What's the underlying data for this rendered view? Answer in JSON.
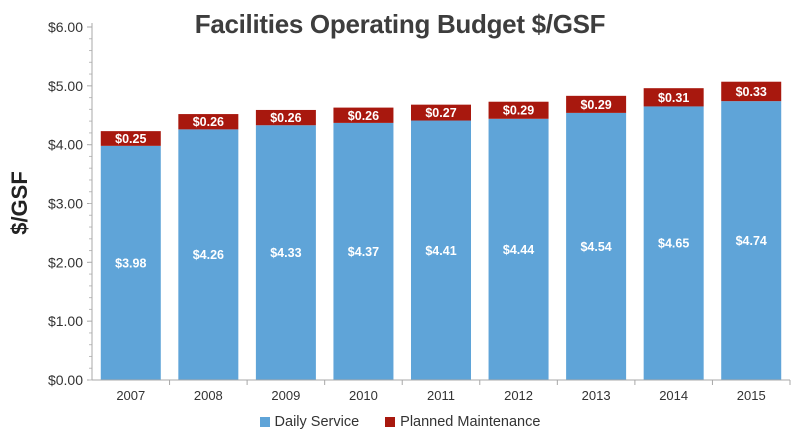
{
  "chart_data": {
    "type": "bar",
    "stacked": true,
    "title": "Facilities Operating Budget $/GSF",
    "ylabel": "$/GSF",
    "xlabel": "",
    "categories": [
      "2007",
      "2008",
      "2009",
      "2010",
      "2011",
      "2012",
      "2013",
      "2014",
      "2015"
    ],
    "series": [
      {
        "name": "Daily Service",
        "color": "#5fa4d8",
        "values": [
          3.98,
          4.26,
          4.33,
          4.37,
          4.41,
          4.44,
          4.54,
          4.65,
          4.74
        ],
        "labels": [
          "$3.98",
          "$4.26",
          "$4.33",
          "$4.37",
          "$4.41",
          "$4.44",
          "$4.54",
          "$4.65",
          "$4.74"
        ]
      },
      {
        "name": "Planned Maintenance",
        "color": "#a8180e",
        "values": [
          0.25,
          0.26,
          0.26,
          0.26,
          0.27,
          0.29,
          0.29,
          0.31,
          0.33
        ],
        "labels": [
          "$0.25",
          "$0.26",
          "$0.26",
          "$0.26",
          "$0.27",
          "$0.29",
          "$0.29",
          "$0.31",
          "$0.33"
        ]
      }
    ],
    "ylim": [
      0,
      6
    ],
    "y_ticks": [
      0,
      1,
      2,
      3,
      4,
      5,
      6
    ],
    "y_tick_labels": [
      "$0.00",
      "$1.00",
      "$2.00",
      "$3.00",
      "$4.00",
      "$5.00",
      "$6.00"
    ],
    "grid": false,
    "legend_position": "bottom"
  }
}
